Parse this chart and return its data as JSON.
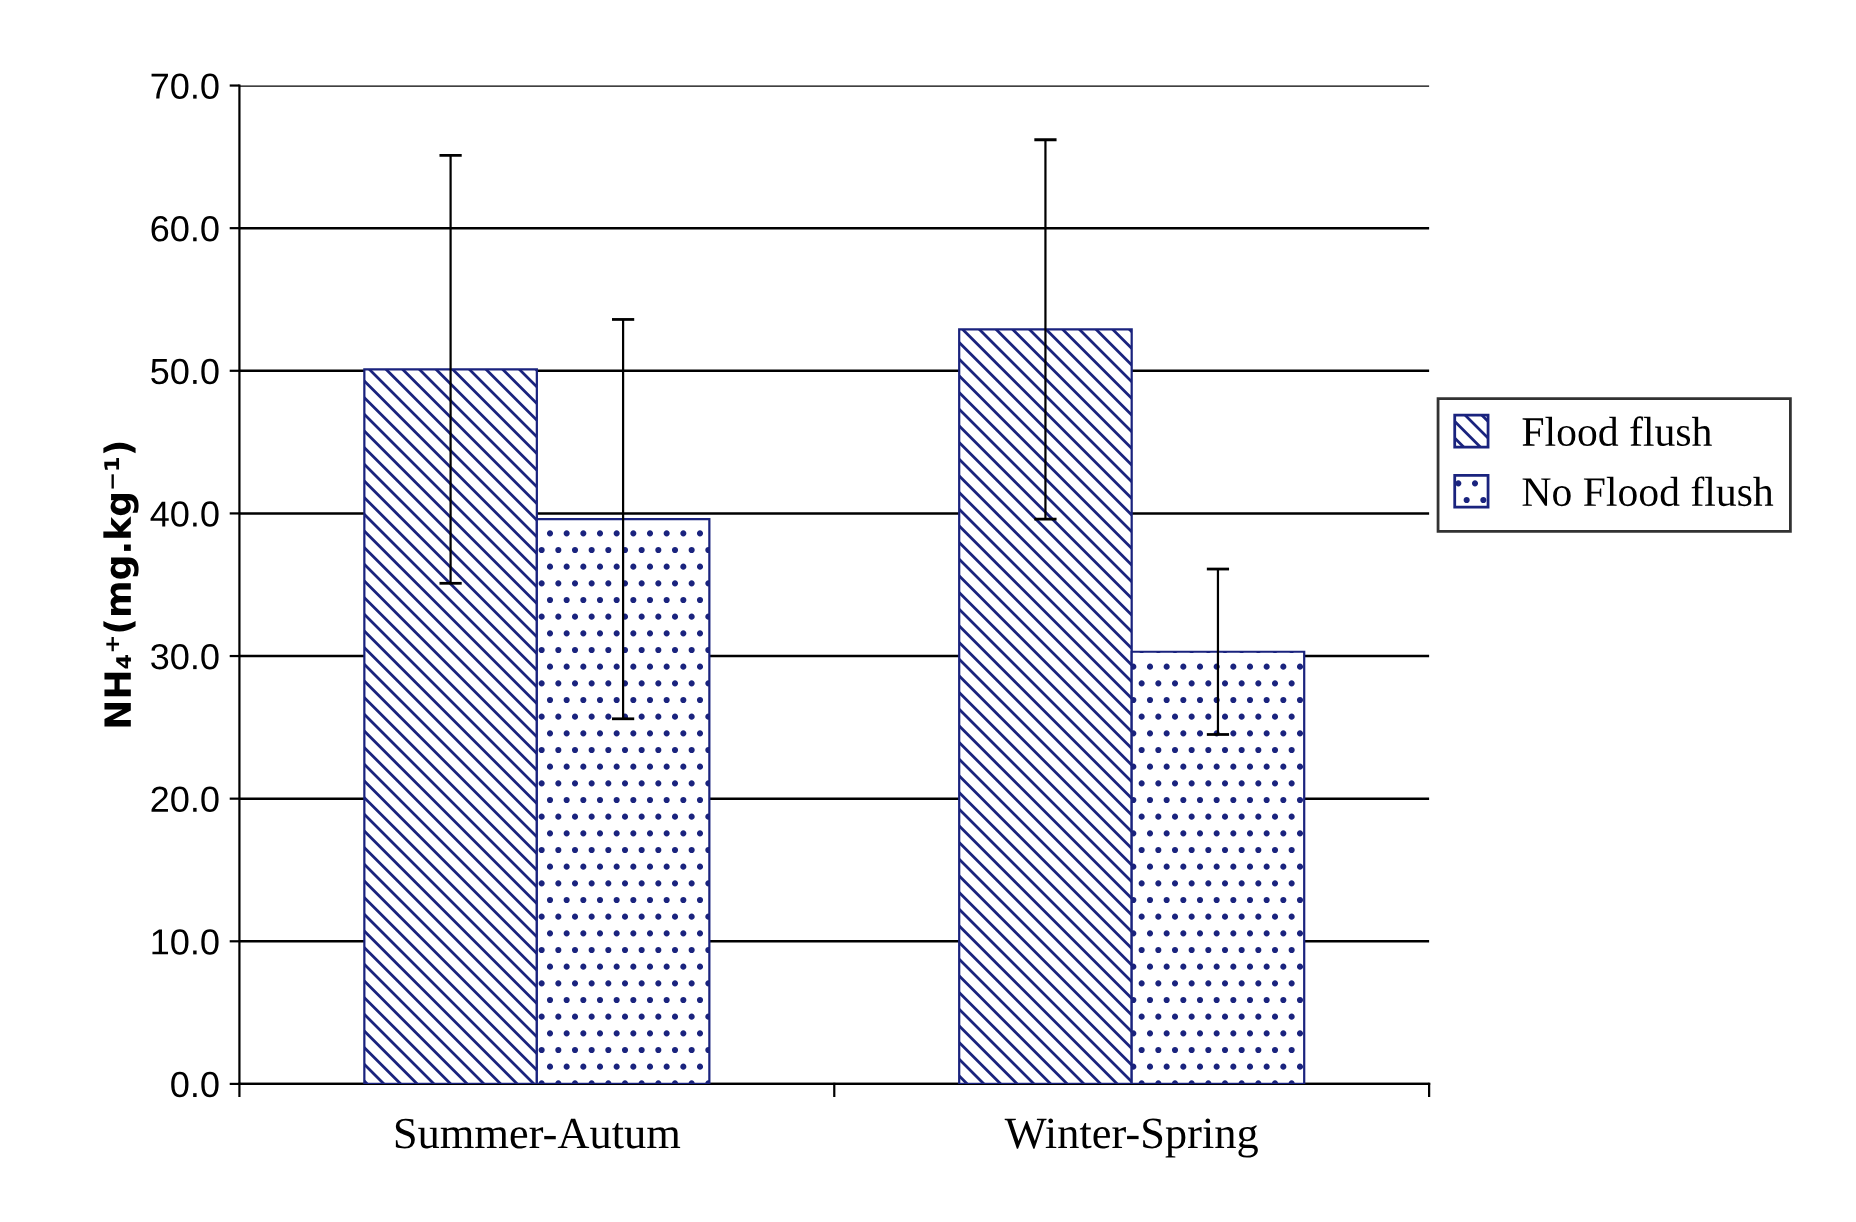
{
  "chart_data": {
    "type": "bar",
    "ylabel": "NH₄⁺(mg.kg⁻¹)",
    "categories": [
      "Summer-Autum",
      "Winter-Spring"
    ],
    "series": [
      {
        "name": "Flood flush",
        "color": "#1a237e",
        "values": [
          50.1,
          52.9
        ],
        "errors": [
          15.0,
          13.3
        ]
      },
      {
        "name": "No Flood flush",
        "color": "#1a237e",
        "values": [
          39.6,
          30.3
        ],
        "errors": [
          14.0,
          5.8
        ]
      }
    ],
    "ylim": [
      0,
      70
    ],
    "yticks": [
      {
        "value": 0,
        "label": "0.0"
      },
      {
        "value": 10,
        "label": "10.0"
      },
      {
        "value": 20,
        "label": "20.0"
      },
      {
        "value": 30,
        "label": "30.0"
      },
      {
        "value": 40,
        "label": "40.0"
      },
      {
        "value": 50,
        "label": "50.0"
      },
      {
        "value": 60,
        "label": "60.0"
      },
      {
        "value": 70,
        "label": "70.0"
      }
    ],
    "grid": "y",
    "legend": "right"
  }
}
